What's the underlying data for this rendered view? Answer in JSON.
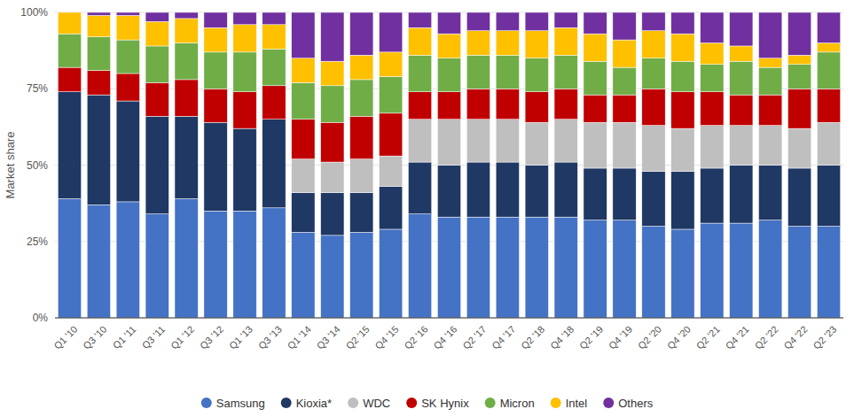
{
  "chart_data": {
    "type": "bar",
    "stacked": true,
    "ylabel": "Market share",
    "categories": [
      "Q1 '10",
      "Q3 '10",
      "Q1 '11",
      "Q3 '11",
      "Q1 '12",
      "Q3 '12",
      "Q1 '13",
      "Q3 '13",
      "Q1 '14",
      "Q3 '14",
      "Q2 '15",
      "Q4 '15",
      "Q2 '16",
      "Q4 '16",
      "Q2 '17",
      "Q4 '17",
      "Q2 '18",
      "Q4 '18",
      "Q2 '19",
      "Q4 '19",
      "Q2 '20",
      "Q4 '20",
      "Q2 '21",
      "Q4 '21",
      "Q2 '22",
      "Q4 '22",
      "Q2 '23"
    ],
    "series": [
      {
        "name": "Samsung",
        "color": "#4472C4",
        "values": [
          39,
          37,
          38,
          34,
          39,
          35,
          35,
          36,
          28,
          27,
          28,
          29,
          34,
          33,
          33,
          33,
          33,
          33,
          32,
          32,
          30,
          29,
          31,
          31,
          32,
          30,
          30
        ]
      },
      {
        "name": "Kioxia*",
        "color": "#1F3864",
        "values": [
          35,
          36,
          33,
          32,
          27,
          29,
          27,
          29,
          13,
          14,
          13,
          14,
          17,
          17,
          18,
          18,
          17,
          18,
          17,
          17,
          18,
          19,
          18,
          19,
          18,
          19,
          20
        ]
      },
      {
        "name": "WDC",
        "color": "#BFBFBF",
        "values": [
          0,
          0,
          0,
          0,
          0,
          0,
          0,
          0,
          11,
          10,
          11,
          10,
          14,
          15,
          14,
          14,
          14,
          14,
          15,
          15,
          15,
          14,
          14,
          13,
          13,
          13,
          14
        ]
      },
      {
        "name": "SK Hynix",
        "color": "#C00000",
        "values": [
          8,
          8,
          9,
          11,
          12,
          11,
          12,
          11,
          13,
          13,
          14,
          14,
          9,
          9,
          10,
          10,
          10,
          10,
          9,
          9,
          12,
          12,
          11,
          10,
          10,
          13,
          11
        ]
      },
      {
        "name": "Micron",
        "color": "#70AD47",
        "values": [
          11,
          11,
          11,
          12,
          12,
          12,
          13,
          12,
          12,
          12,
          12,
          12,
          12,
          11,
          11,
          11,
          11,
          11,
          11,
          9,
          10,
          10,
          9,
          11,
          9,
          8,
          12
        ]
      },
      {
        "name": "Intel",
        "color": "#FFC000",
        "values": [
          7,
          7,
          8,
          8,
          8,
          8,
          9,
          8,
          8,
          8,
          8,
          8,
          9,
          8,
          8,
          8,
          9,
          9,
          9,
          9,
          9,
          9,
          7,
          5,
          3,
          3,
          3
        ]
      },
      {
        "name": "Others",
        "color": "#7030A0",
        "values": [
          0,
          1,
          1,
          3,
          2,
          5,
          4,
          4,
          15,
          16,
          14,
          13,
          5,
          7,
          6,
          6,
          6,
          5,
          7,
          9,
          6,
          7,
          10,
          11,
          15,
          14,
          10
        ]
      }
    ],
    "ylim": [
      0,
      100
    ],
    "yticks": [
      {
        "value": 0,
        "label": "0%"
      },
      {
        "value": 25,
        "label": "25%"
      },
      {
        "value": 50,
        "label": "50%"
      },
      {
        "value": 75,
        "label": "75%"
      },
      {
        "value": 100,
        "label": "100%"
      }
    ],
    "grid": true,
    "legend": "bottom"
  }
}
